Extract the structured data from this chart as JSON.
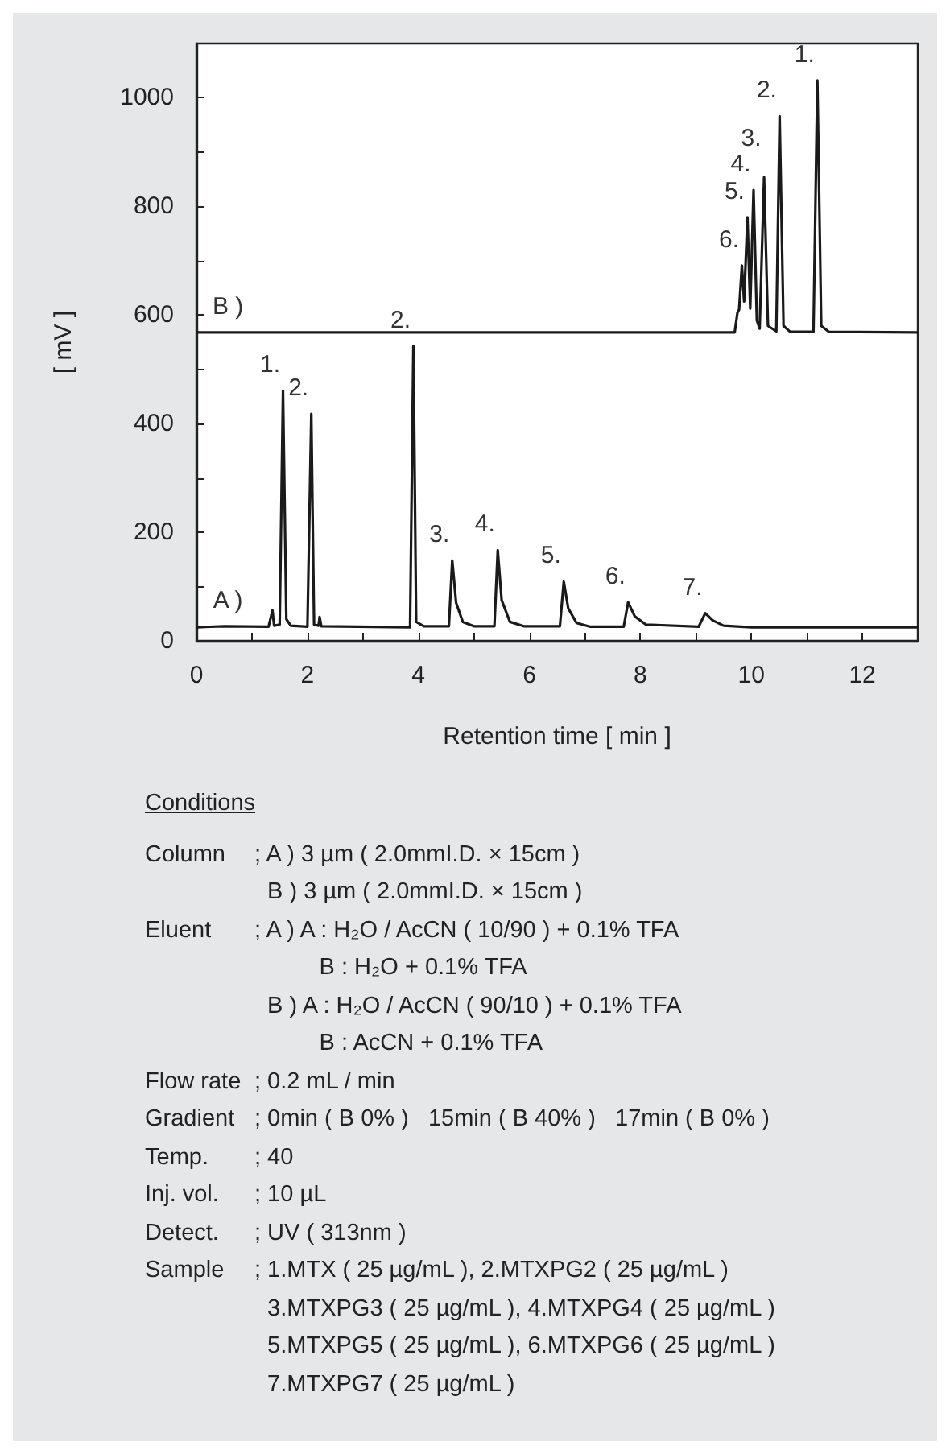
{
  "chart_data": {
    "type": "line",
    "xlabel": "Retention time [ min ]",
    "ylabel": "[ mV ]",
    "xlim": [
      0,
      13
    ],
    "xticks": [
      0,
      {
        "value": 1,
        "label": null
      },
      2,
      {
        "value": 3,
        "label": null
      },
      4,
      {
        "value": 5,
        "label": null
      },
      6,
      {
        "value": 7,
        "label": null
      },
      8,
      {
        "value": 9,
        "label": null
      },
      10,
      {
        "value": 11,
        "label": null
      },
      12
    ],
    "ylim": [
      0,
      1100
    ],
    "yticks": [
      0,
      {
        "value": 100,
        "label": null
      },
      200,
      {
        "value": 300,
        "label": null
      },
      400,
      {
        "value": 500,
        "label": null
      },
      600,
      {
        "value": 700,
        "label": null
      },
      800,
      {
        "value": 900,
        "label": null
      },
      1000
    ],
    "grid": false,
    "marker": "none",
    "line_style": "solid",
    "series": [
      {
        "color": "#1a1a1a",
        "x": [
          0,
          0.5,
          1.3,
          1.37,
          1.4,
          1.5,
          1.56,
          1.62,
          1.7,
          2.0,
          2.07,
          2.12,
          2.2,
          2.22,
          2.25,
          3.85,
          3.91,
          3.96,
          4.1,
          4.55,
          4.61,
          4.68,
          4.8,
          5.0,
          5.37,
          5.43,
          5.5,
          5.65,
          5.9,
          6.55,
          6.62,
          6.7,
          6.85,
          7.1,
          7.7,
          7.78,
          7.9,
          8.1,
          9.05,
          9.17,
          9.3,
          9.5,
          10,
          13
        ],
        "values": [
          25,
          27,
          26,
          56,
          28,
          30,
          461,
          40,
          28,
          26,
          418,
          30,
          28,
          44,
          27,
          25,
          543,
          35,
          27,
          27,
          148,
          70,
          35,
          27,
          27,
          167,
          75,
          35,
          27,
          27,
          109,
          60,
          33,
          26,
          26,
          71,
          45,
          30,
          26,
          51,
          38,
          28,
          25,
          25
        ]
      },
      {
        "color": "#1a1a1a",
        "x": [
          0,
          9.7,
          9.75,
          9.78,
          9.83,
          9.87,
          9.93,
          9.98,
          10.04,
          10.1,
          10.15,
          10.23,
          10.3,
          10.45,
          10.51,
          10.58,
          10.7,
          11.12,
          11.19,
          11.26,
          11.4,
          13
        ],
        "values": [
          568,
          568,
          604,
          610,
          691,
          625,
          780,
          612,
          830,
          590,
          575,
          854,
          580,
          570,
          966,
          580,
          569,
          569,
          1032,
          580,
          569,
          568
        ]
      }
    ],
    "annotations": [
      {
        "text": "1.",
        "x": 1.56,
        "y": 461
      },
      {
        "text": "2.",
        "x": 2.07,
        "y": 418
      },
      {
        "text": "2.",
        "x": 3.91,
        "y": 543
      },
      {
        "text": "3.",
        "x": 4.61,
        "y": 148
      },
      {
        "text": "4.",
        "x": 5.43,
        "y": 167
      },
      {
        "text": "5.",
        "x": 6.62,
        "y": 109
      },
      {
        "text": "6.",
        "x": 7.78,
        "y": 71
      },
      {
        "text": "7.",
        "x": 9.17,
        "y": 51
      },
      {
        "text": "A )",
        "x": 0.8,
        "y": 27
      },
      {
        "text": "B )",
        "x": 0.8,
        "y": 568
      },
      {
        "text": "6.",
        "x": 9.83,
        "y": 691
      },
      {
        "text": "5.",
        "x": 9.93,
        "y": 780
      },
      {
        "text": "4.",
        "x": 10.04,
        "y": 830
      },
      {
        "text": "3.",
        "x": 10.23,
        "y": 854
      },
      {
        "text": "2.",
        "x": 10.51,
        "y": 966
      },
      {
        "text": "1.",
        "x": 11.19,
        "y": 1032
      },
      "Conditions",
      "Column\t; A ) 3 µm ( 2.0mmI.D. × 15cm )",
      "\t  B ) 3 µm ( 2.0mmI.D. × 15cm )",
      "Eluent\t; A ) A : H₂O / AcCN ( 10/90 ) + 0.1% TFA",
      "\t          B : H₂O + 0.1% TFA",
      "\t  B ) A : H₂O / AcCN ( 90/10 ) + 0.1% TFA",
      "\t          B : AcCN + 0.1% TFA",
      "Flow rate\t; 0.2 mL / min",
      "Gradient\t; 0min ( B 0% )   15min ( B 40% )   17min ( B 0% )",
      "Temp.\t; 40",
      "Inj. vol.\t; 10 µL",
      "Detect.\t; UV ( 313nm )",
      "Sample\t; 1.MTX ( 25 µg/mL ), 2.MTXPG2 ( 25 µg/mL )",
      "\t  3.MTXPG3 ( 25 µg/mL ), 4.MTXPG4 ( 25 µg/mL )",
      "\t  5.MTXPG5 ( 25 µg/mL ), 6.MTXPG6 ( 25 µg/mL )",
      "\t  7.MTXPG7 ( 25 µg/mL )"
    ]
  }
}
